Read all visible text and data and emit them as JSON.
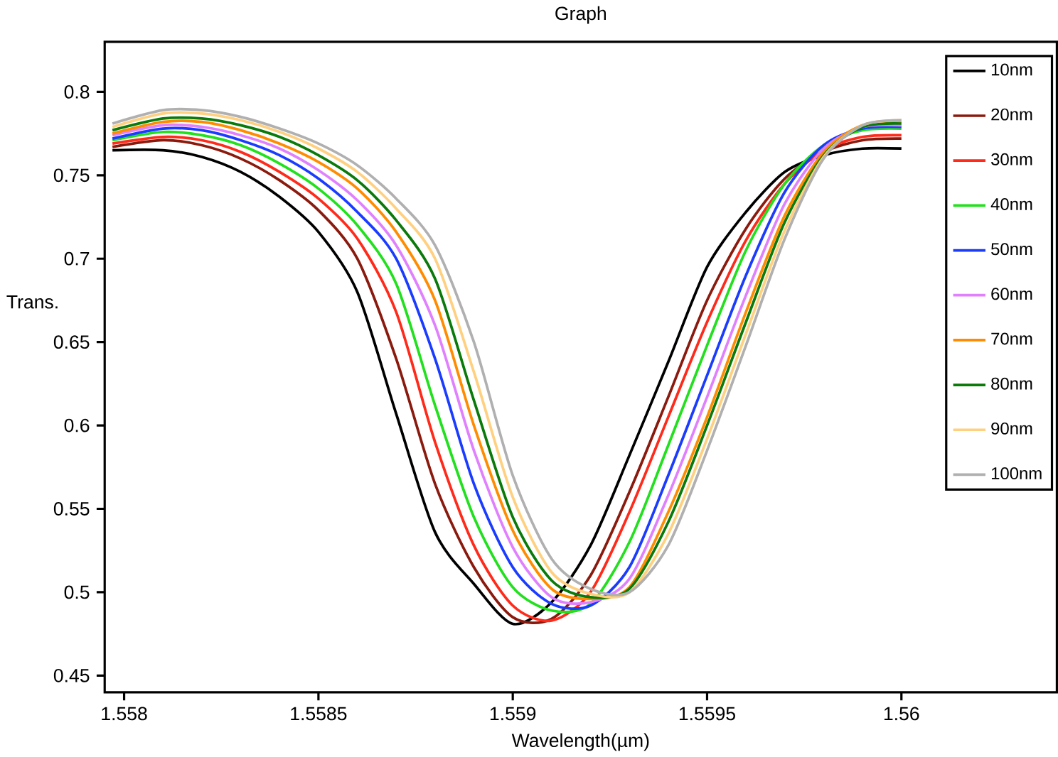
{
  "chart_data": {
    "type": "line",
    "title": "Graph",
    "xlabel": "Wavelength(µm)",
    "ylabel": "Trans.",
    "x": [
      1.55797,
      1.5581,
      1.5582,
      1.5583,
      1.5584,
      1.5585,
      1.5586,
      1.5587,
      1.5588,
      1.5589,
      1.559,
      1.5591,
      1.5592,
      1.5593,
      1.5594,
      1.5595,
      1.5596,
      1.5597,
      1.5598,
      1.5599,
      1.56
    ],
    "series": [
      {
        "name": "10nm",
        "color": "#000000",
        "values": [
          0.765,
          0.765,
          0.761,
          0.752,
          0.737,
          0.716,
          0.68,
          0.607,
          0.536,
          0.505,
          0.481,
          0.494,
          0.528,
          0.582,
          0.638,
          0.695,
          0.728,
          0.752,
          0.762,
          0.766,
          0.766
        ]
      },
      {
        "name": "20nm",
        "color": "#8b1a0e",
        "values": [
          0.767,
          0.771,
          0.768,
          0.76,
          0.747,
          0.729,
          0.7,
          0.64,
          0.565,
          0.515,
          0.485,
          0.484,
          0.51,
          0.56,
          0.617,
          0.675,
          0.718,
          0.748,
          0.764,
          0.771,
          0.772
        ]
      },
      {
        "name": "30nm",
        "color": "#ff2a1a",
        "values": [
          0.769,
          0.773,
          0.771,
          0.764,
          0.752,
          0.736,
          0.712,
          0.668,
          0.59,
          0.528,
          0.492,
          0.483,
          0.5,
          0.548,
          0.605,
          0.662,
          0.711,
          0.745,
          0.765,
          0.773,
          0.774
        ]
      },
      {
        "name": "40nm",
        "color": "#22e01e",
        "values": [
          0.771,
          0.776,
          0.774,
          0.768,
          0.757,
          0.742,
          0.72,
          0.685,
          0.612,
          0.545,
          0.503,
          0.489,
          0.493,
          0.53,
          0.588,
          0.648,
          0.705,
          0.745,
          0.768,
          0.777,
          0.778
        ]
      },
      {
        "name": "50nm",
        "color": "#1a3cff",
        "values": [
          0.772,
          0.778,
          0.777,
          0.771,
          0.762,
          0.748,
          0.728,
          0.7,
          0.64,
          0.565,
          0.515,
          0.493,
          0.492,
          0.515,
          0.57,
          0.63,
          0.69,
          0.74,
          0.768,
          0.778,
          0.779
        ]
      },
      {
        "name": "60nm",
        "color": "#e080ff",
        "values": [
          0.774,
          0.78,
          0.779,
          0.774,
          0.766,
          0.753,
          0.735,
          0.708,
          0.66,
          0.585,
          0.527,
          0.497,
          0.494,
          0.508,
          0.558,
          0.617,
          0.678,
          0.733,
          0.766,
          0.779,
          0.78
        ]
      },
      {
        "name": "70nm",
        "color": "#ff8c00",
        "values": [
          0.775,
          0.782,
          0.782,
          0.777,
          0.769,
          0.758,
          0.742,
          0.716,
          0.675,
          0.6,
          0.537,
          0.502,
          0.496,
          0.503,
          0.548,
          0.605,
          0.668,
          0.726,
          0.764,
          0.78,
          0.782
        ]
      },
      {
        "name": "80nm",
        "color": "#0a7a0a",
        "values": [
          0.777,
          0.784,
          0.784,
          0.78,
          0.773,
          0.762,
          0.747,
          0.723,
          0.688,
          0.615,
          0.545,
          0.507,
          0.497,
          0.502,
          0.542,
          0.6,
          0.662,
          0.722,
          0.762,
          0.779,
          0.781
        ]
      },
      {
        "name": "90nm",
        "color": "#ffd080",
        "values": [
          0.779,
          0.787,
          0.787,
          0.783,
          0.776,
          0.766,
          0.752,
          0.73,
          0.7,
          0.632,
          0.557,
          0.512,
          0.499,
          0.5,
          0.535,
          0.592,
          0.655,
          0.717,
          0.761,
          0.78,
          0.783
        ]
      },
      {
        "name": "100nm",
        "color": "#b0b0b0",
        "values": [
          0.781,
          0.789,
          0.789,
          0.785,
          0.778,
          0.769,
          0.756,
          0.736,
          0.708,
          0.65,
          0.57,
          0.52,
          0.502,
          0.5,
          0.528,
          0.585,
          0.648,
          0.712,
          0.76,
          0.78,
          0.783
        ]
      }
    ],
    "xlim": [
      1.55795,
      1.5604
    ],
    "ylim": [
      0.44,
      0.83
    ],
    "xticks": [
      1.558,
      1.5585,
      1.559,
      1.5595,
      1.56
    ],
    "yticks": [
      0.45,
      0.5,
      0.55,
      0.6,
      0.65,
      0.7,
      0.75,
      0.8
    ],
    "grid": false,
    "legend": "top right",
    "marker": "none",
    "line_style": "solid"
  }
}
